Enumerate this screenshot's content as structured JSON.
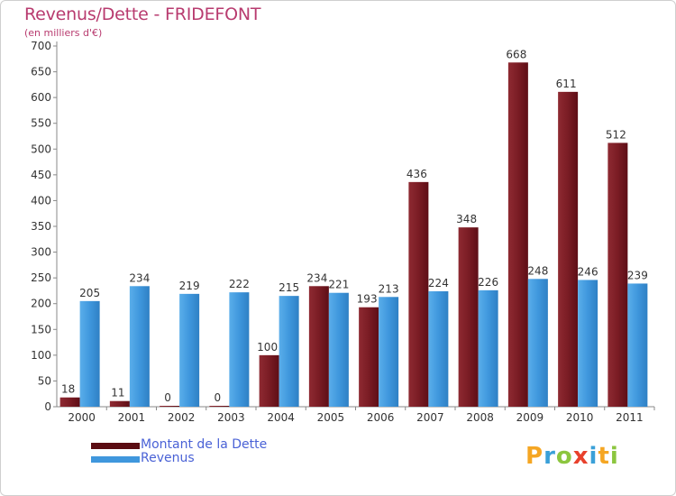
{
  "header": {
    "title": "Revenus/Dette - FRIDEFONT",
    "subtitle": "(en milliers d'€)"
  },
  "colors": {
    "dette": "#7a1c24",
    "revenus": "#3f97dd",
    "title": "#b83b6f",
    "legend_text": "#4a62d6"
  },
  "legend": {
    "items": [
      {
        "label": "Montant de la Dette",
        "color": "#7a1c24"
      },
      {
        "label": "Revenus",
        "color": "#3f97dd"
      }
    ]
  },
  "logo": {
    "text": "Proxiti"
  },
  "chart_data": {
    "type": "bar",
    "title": "Revenus/Dette - FRIDEFONT",
    "subtitle": "(en milliers d'€)",
    "xlabel": "",
    "ylabel": "",
    "categories": [
      "2000",
      "2001",
      "2002",
      "2003",
      "2004",
      "2005",
      "2006",
      "2007",
      "2008",
      "2009",
      "2010",
      "2011"
    ],
    "series": [
      {
        "name": "Montant de la Dette",
        "values": [
          18,
          11,
          0,
          0,
          100,
          234,
          193,
          436,
          348,
          668,
          611,
          512
        ]
      },
      {
        "name": "Revenus",
        "values": [
          205,
          234,
          219,
          222,
          215,
          221,
          213,
          224,
          226,
          248,
          246,
          239
        ]
      }
    ],
    "ylim": [
      0,
      700
    ],
    "yticks": [
      0,
      50,
      100,
      150,
      200,
      250,
      300,
      350,
      400,
      450,
      500,
      550,
      600,
      650,
      700
    ],
    "grid": false,
    "legend_position": "bottom-left"
  }
}
